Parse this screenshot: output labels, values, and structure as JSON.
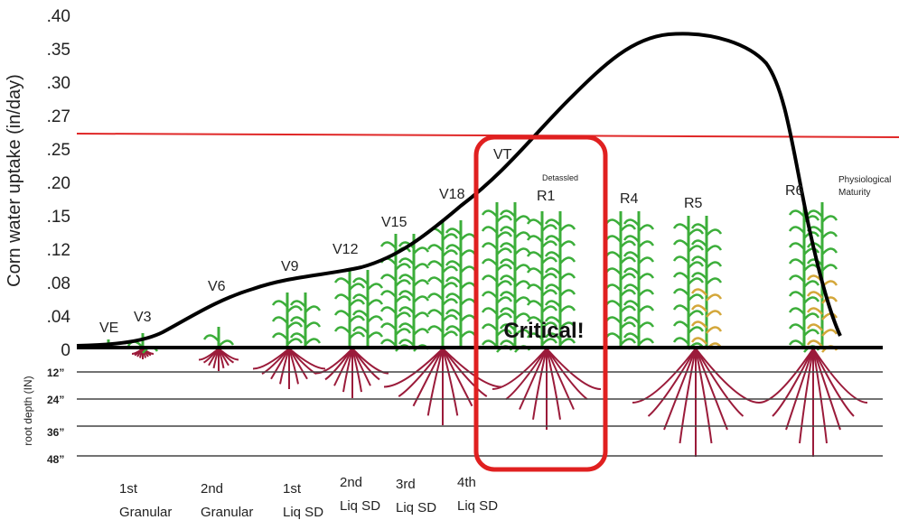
{
  "y_axis": {
    "title": "Corn water uptake (in/day)",
    "ticks": [
      ".40",
      ".35",
      ".30",
      ".27",
      ".25",
      ".20",
      ".15",
      ".12",
      ".08",
      ".04",
      "0"
    ]
  },
  "root_axis": {
    "title": "root depth (IN)",
    "ticks": [
      "12”",
      "24”",
      "36”",
      "48”"
    ]
  },
  "stages": [
    "VE",
    "V3",
    "V6",
    "V9",
    "V12",
    "V15",
    "V18",
    "VT",
    "R1",
    "R4",
    "R5",
    "R6"
  ],
  "notes": {
    "detassled": "Detassled",
    "maturity": [
      "Physiological",
      "Maturity"
    ],
    "critical": "Critical!"
  },
  "applications": [
    [
      "1st",
      "Granular"
    ],
    [
      "2nd",
      "Granular"
    ],
    [
      "1st",
      "Liq SD"
    ],
    [
      "2nd",
      "Liq SD"
    ],
    [
      "3rd",
      "Liq SD"
    ],
    [
      "4th",
      "Liq SD"
    ]
  ]
}
